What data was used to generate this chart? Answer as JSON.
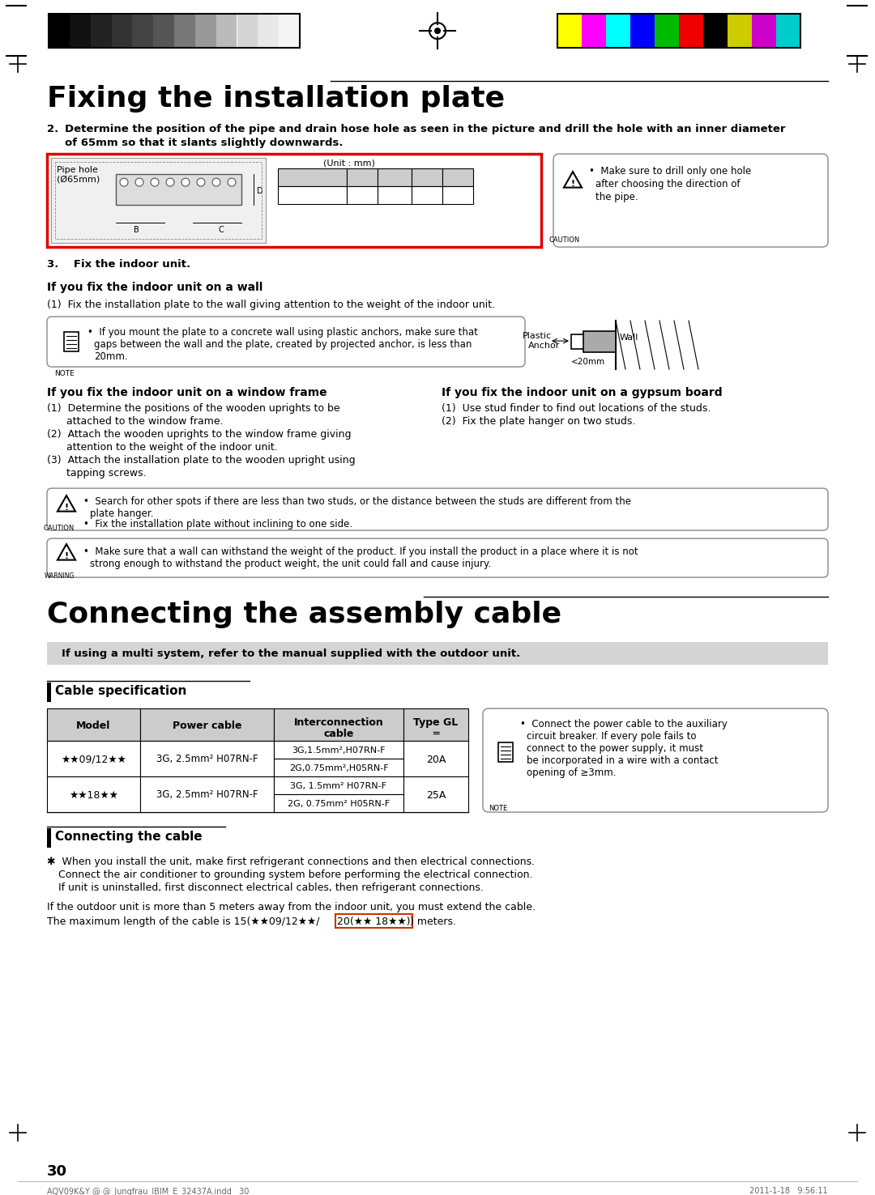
{
  "bg_color": "#ffffff",
  "title1": "Fixing the installation plate",
  "title2": "Connecting the assembly cable",
  "red_border": "#dd0000",
  "gray_strip_colors": [
    "#000000",
    "#111111",
    "#222222",
    "#333333",
    "#444444",
    "#555555",
    "#777777",
    "#999999",
    "#bbbbbb",
    "#d5d5d5",
    "#e8e8e8",
    "#f5f5f5"
  ],
  "color_strip": [
    "#ffff00",
    "#ff00ff",
    "#00ffff",
    "#0000ff",
    "#00bb00",
    "#ee0000",
    "#000000",
    "#cccc00",
    "#cc00cc",
    "#00cccc"
  ],
  "table_header_bg": "#cccccc",
  "gray_bar_bg": "#d0d0d0",
  "note_border": "#888888"
}
